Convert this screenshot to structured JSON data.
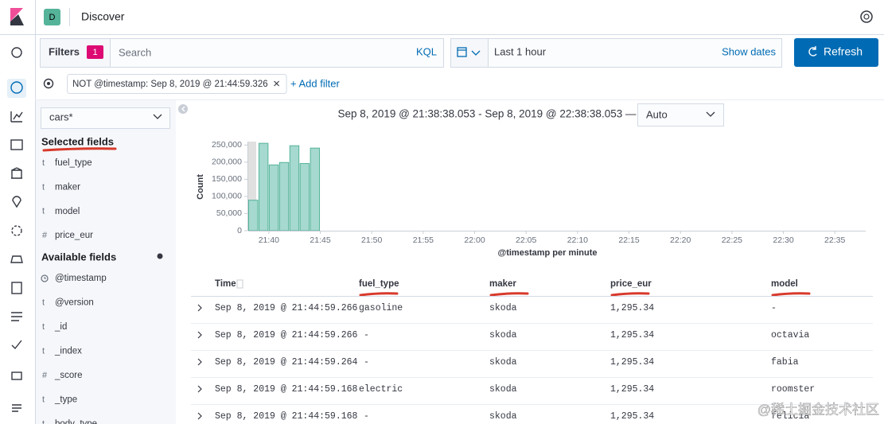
{
  "header": {
    "badge": "D",
    "title": "Discover"
  },
  "query_bar": {
    "filters_label": "Filters",
    "filter_count": 1,
    "search_placeholder": "Search",
    "language": "KQL",
    "time_range": "Last 1 hour",
    "show_dates": "Show dates",
    "refresh": "Refresh"
  },
  "filter_bar": {
    "filters": [
      "NOT @timestamp: Sep 8, 2019 @ 21:44:59.326"
    ],
    "add_filter": "+ Add filter"
  },
  "sidebar": {
    "index_pattern": "cars*",
    "selected_title": "Selected fields",
    "selected_fields": [
      {
        "type": "t",
        "name": "fuel_type"
      },
      {
        "type": "t",
        "name": "maker"
      },
      {
        "type": "t",
        "name": "model"
      },
      {
        "type": "#",
        "name": "price_eur"
      }
    ],
    "available_title": "Available fields",
    "available_fields": [
      {
        "name": "@timestamp"
      },
      {
        "type": "t",
        "name": "@version"
      },
      {
        "type": "t",
        "name": "_id"
      },
      {
        "type": "t",
        "name": "_index"
      },
      {
        "type": "#",
        "name": "_score"
      },
      {
        "type": "t",
        "name": "_type"
      },
      {
        "type": "t",
        "name": "body_type"
      }
    ]
  },
  "histogram_header": {
    "range": "Sep 8, 2019 @ 21:38:38.053 - Sep 8, 2019 @ 22:38:38.053 —",
    "interval": "Auto"
  },
  "chart_data": {
    "type": "histogram",
    "x_label": "@timestamp per minute",
    "y_label": "Count",
    "bins": [
      "21:38",
      "21:39",
      "21:40",
      "21:41",
      "21:42",
      "21:43",
      "21:44",
      "21:45"
    ],
    "values": [
      89000,
      255000,
      192000,
      199000,
      248000,
      196000,
      241000
    ],
    "color": "#a6d9d0",
    "edge_color": "#54b399",
    "xlim": [
      "21:38",
      "22:38"
    ],
    "xticks": [
      "21:40",
      "21:45",
      "21:50",
      "21:55",
      "22:00",
      "22:05",
      "22:10",
      "22:15",
      "22:20",
      "22:25",
      "22:30",
      "22:35"
    ],
    "ylim": [
      0,
      260000
    ],
    "yticks": [
      0,
      {
        "value": 50000,
        "label": "50,000"
      },
      {
        "value": 100000,
        "label": "100,000"
      },
      {
        "value": 150000,
        "label": "150,000"
      },
      {
        "value": 200000,
        "label": "200,000"
      },
      {
        "value": 250000,
        "label": "250,000"
      }
    ]
  },
  "table": {
    "columns": [
      "Time",
      "fuel_type",
      "maker",
      "price_eur",
      "model"
    ],
    "rows": [
      [
        "Sep 8, 2019 @ 21:44:59.266",
        "gasoline",
        "skoda",
        "1,295.34",
        "-"
      ],
      [
        "Sep 8, 2019 @ 21:44:59.266",
        "-",
        "skoda",
        "1,295.34",
        "octavia"
      ],
      [
        "Sep 8, 2019 @ 21:44:59.264",
        "-",
        "skoda",
        "1,295.34",
        "fabia"
      ],
      [
        "Sep 8, 2019 @ 21:44:59.168",
        "electric",
        "skoda",
        "1,295.34",
        "roomster"
      ],
      [
        "Sep 8, 2019 @ 21:44:59.168",
        "-",
        "skoda",
        "1,295.34",
        "felicia"
      ]
    ]
  },
  "watermark": "@稀土掘金技术社区"
}
